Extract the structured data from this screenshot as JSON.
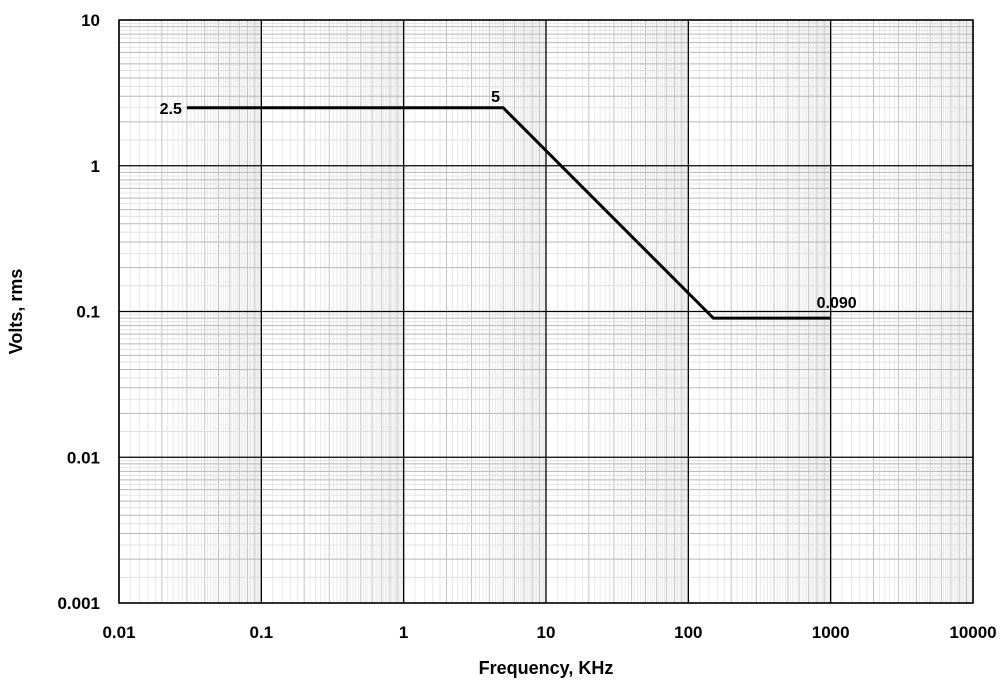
{
  "chart_data": {
    "type": "line",
    "x_scale": "log",
    "y_scale": "log",
    "xlim": [
      0.01,
      10000
    ],
    "ylim": [
      0.001,
      10
    ],
    "x_ticks": [
      "0.01",
      "0.1",
      "1",
      "10",
      "100",
      "1000",
      "10000"
    ],
    "y_ticks": [
      "10",
      "1",
      "0.1",
      "0.01",
      "0.001"
    ],
    "xlabel": "Frequency, KHz",
    "ylabel": "Volts, rms",
    "grid": true,
    "grid_minor": true,
    "series": [
      {
        "x": [
          0.03,
          5,
          150,
          1000
        ],
        "y": [
          2.5,
          2.5,
          0.09,
          0.09
        ],
        "color": "#000000"
      }
    ],
    "annotations": [
      {
        "text": "2.5",
        "x": 0.03,
        "y": 2.5,
        "anchor": "left-of-point"
      },
      {
        "text": "5",
        "x": 5,
        "y": 2.5,
        "anchor": "above-point"
      },
      {
        "text": "0.090",
        "x": 1000,
        "y": 0.09,
        "anchor": "above-left"
      }
    ]
  }
}
